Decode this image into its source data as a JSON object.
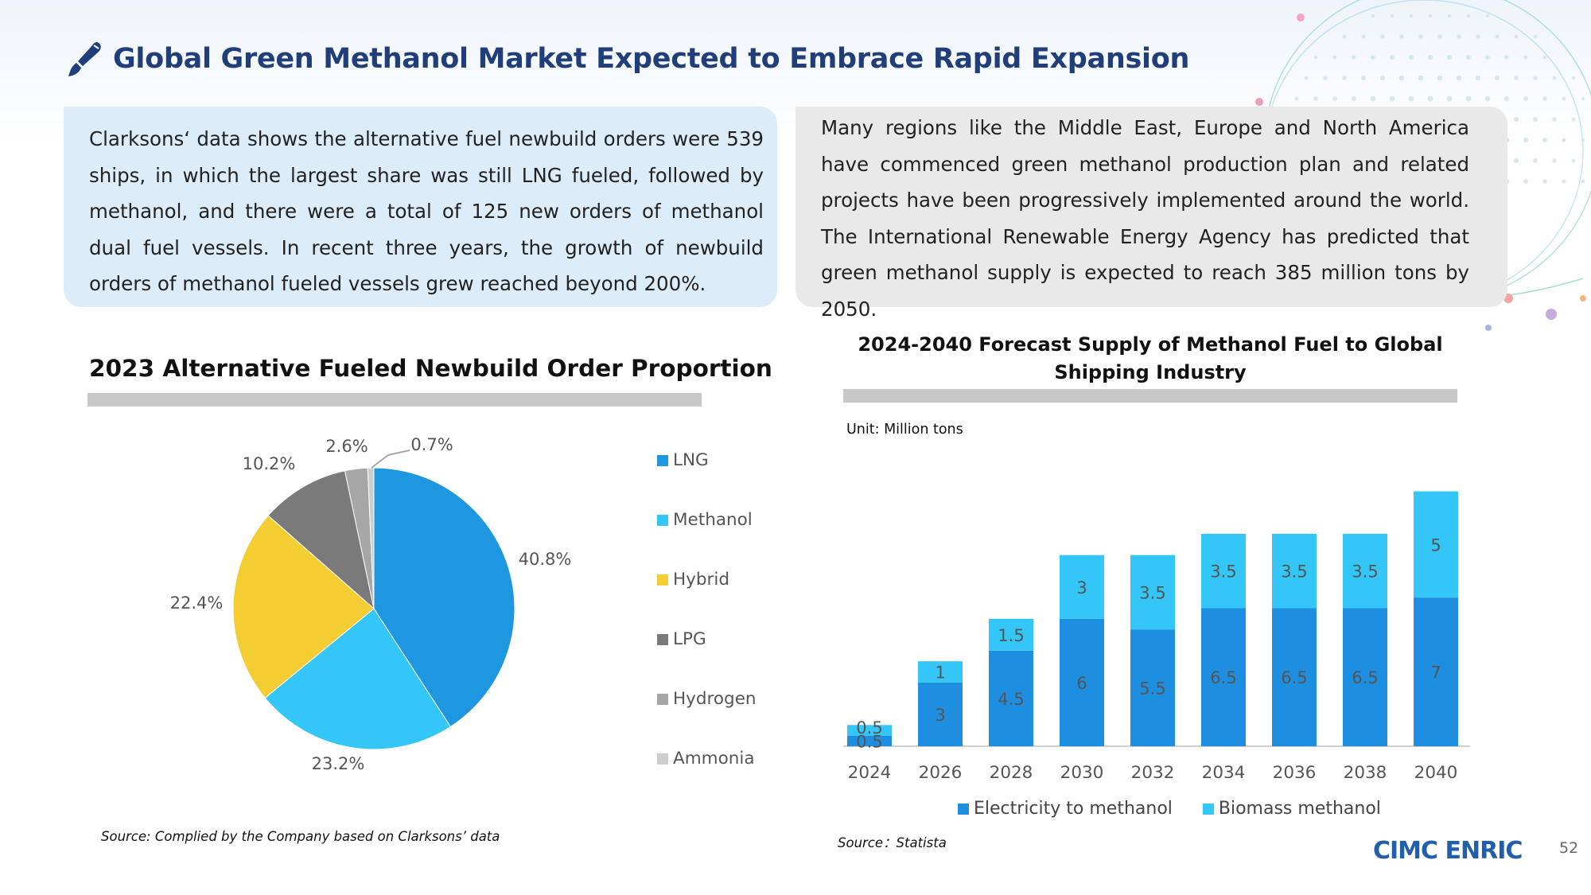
{
  "header": {
    "title": "Global Green Methanol Market Expected to Embrace Rapid Expansion"
  },
  "text_boxes": {
    "left": "Clarksons‘ data shows the alternative fuel newbuild orders were 539 ships, in which the largest share was still LNG fueled, followed by methanol, and there were a total of 125 new orders of methanol dual fuel vessels. In recent three years, the growth of newbuild orders of methanol fueled vessels grew reached beyond 200%.",
    "right": "Many regions like the Middle East, Europe and North America have commenced green methanol production plan and related projects have been progressively implemented around the world. The International Renewable Energy Agency has predicted that green methanol supply is expected to reach 385 million tons by 2050."
  },
  "left_panel": {
    "heading": "2023 Alternative Fueled Newbuild Order Proportion",
    "source": "Source: Complied by the Company based on Clarksons’ data"
  },
  "right_panel": {
    "heading_line1": "2024-2040  Forecast Supply of Methanol Fuel to Global",
    "heading_line2": "Shipping Industry",
    "unit": "Unit: Million tons",
    "source": "Source：Statista"
  },
  "footer": {
    "logo_text": "CIMC ENRIC",
    "page_number": "52"
  },
  "colors": {
    "title": "#1f3e7a",
    "lng": "#1e96e0",
    "methanol": "#33c6f6",
    "hybrid": "#f4cd32",
    "lpg": "#7a7a7a",
    "hydrogen": "#a6a6a6",
    "ammonia": "#cdcdcd",
    "electricity": "#1e8fe0",
    "biomass": "#33c6f6"
  },
  "chart_data": [
    {
      "type": "pie",
      "title": "2023 Alternative Fueled Newbuild Order Proportion",
      "categories": [
        "LNG",
        "Methanol",
        "Hybrid",
        "LPG",
        "Hydrogen",
        "Ammonia"
      ],
      "values": [
        40.8,
        23.2,
        22.4,
        10.2,
        2.6,
        0.7
      ],
      "labels": [
        "40.8%",
        "23.2%",
        "22.4%",
        "10.2%",
        "2.6%",
        "0.7%"
      ],
      "legend": "right"
    },
    {
      "type": "bar",
      "stacked": true,
      "title": "2024-2040  Forecast Supply of Methanol Fuel to Global Shipping Industry",
      "categories": [
        "2024",
        "2026",
        "2028",
        "2030",
        "2032",
        "2034",
        "2036",
        "2038",
        "2040"
      ],
      "series": [
        {
          "name": "Electricity to methanol",
          "values": [
            0.5,
            3,
            4.5,
            6,
            5.5,
            6.5,
            6.5,
            6.5,
            7
          ]
        },
        {
          "name": "Biomass methanol",
          "values": [
            0.5,
            1,
            1.5,
            3,
            3.5,
            3.5,
            3.5,
            3.5,
            5
          ]
        }
      ],
      "ylabel": "Unit: Million tons",
      "ylim": [
        0,
        12
      ],
      "grid": false,
      "legend": "bottom"
    }
  ]
}
